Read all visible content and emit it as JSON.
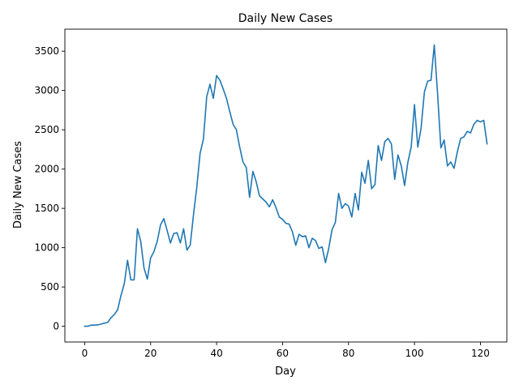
{
  "chart_data": {
    "type": "line",
    "title": "Daily New Cases",
    "xlabel": "Day",
    "ylabel": "Daily New Cases",
    "xlim": [
      -6,
      128
    ],
    "ylim": [
      -200,
      3780
    ],
    "xticks": [
      0,
      20,
      40,
      60,
      80,
      100,
      120
    ],
    "yticks": [
      0,
      500,
      1000,
      1500,
      2000,
      2500,
      3000,
      3500
    ],
    "grid": false,
    "line_color": "#1f77b4",
    "series": [
      {
        "x": [
          0,
          1,
          2,
          3,
          4,
          5,
          6,
          7,
          8,
          9,
          10,
          11,
          12,
          13,
          14,
          15,
          16,
          17,
          18,
          19,
          20,
          21,
          22,
          23,
          24,
          25,
          26,
          27,
          28,
          29,
          30,
          31,
          32,
          33,
          34,
          35,
          36,
          37,
          38,
          39,
          40,
          41,
          42,
          43,
          44,
          45,
          46,
          47,
          48,
          49,
          50,
          51,
          52,
          53,
          54,
          55,
          56,
          57,
          58,
          59,
          60,
          61,
          62,
          63,
          64,
          65,
          66,
          67,
          68,
          69,
          70,
          71,
          72,
          73,
          74,
          75,
          76,
          77,
          78,
          79,
          80,
          81,
          82,
          83,
          84,
          85,
          86,
          87,
          88,
          89,
          90,
          91,
          92,
          93,
          94,
          95,
          96,
          97,
          98,
          99,
          100,
          101,
          102,
          103,
          104,
          105,
          106,
          107,
          108,
          109,
          110,
          111,
          112,
          113,
          114,
          115,
          116,
          117,
          118,
          119,
          120,
          121,
          122
        ],
        "y": [
          0,
          0,
          15,
          15,
          18,
          28,
          40,
          50,
          110,
          150,
          210,
          390,
          540,
          840,
          590,
          590,
          1240,
          1080,
          740,
          600,
          870,
          950,
          1080,
          1290,
          1370,
          1220,
          1060,
          1180,
          1190,
          1060,
          1240,
          970,
          1030,
          1420,
          1770,
          2200,
          2380,
          2920,
          3080,
          2900,
          3190,
          3130,
          3020,
          2900,
          2730,
          2570,
          2500,
          2280,
          2090,
          2020,
          1640,
          1970,
          1840,
          1660,
          1620,
          1580,
          1520,
          1610,
          1510,
          1390,
          1360,
          1310,
          1300,
          1200,
          1030,
          1170,
          1140,
          1150,
          1000,
          1120,
          1090,
          990,
          1010,
          810,
          990,
          1230,
          1320,
          1690,
          1500,
          1560,
          1530,
          1390,
          1690,
          1480,
          1960,
          1820,
          2110,
          1750,
          1800,
          2300,
          2110,
          2350,
          2390,
          2320,
          1870,
          2180,
          2040,
          1790,
          2090,
          2280,
          2820,
          2280,
          2520,
          2980,
          3120,
          3130,
          3580,
          2960,
          2270,
          2370,
          2040,
          2090,
          2010,
          2220,
          2390,
          2410,
          2480,
          2460,
          2570,
          2620,
          2600,
          2620,
          2320
        ]
      }
    ]
  }
}
